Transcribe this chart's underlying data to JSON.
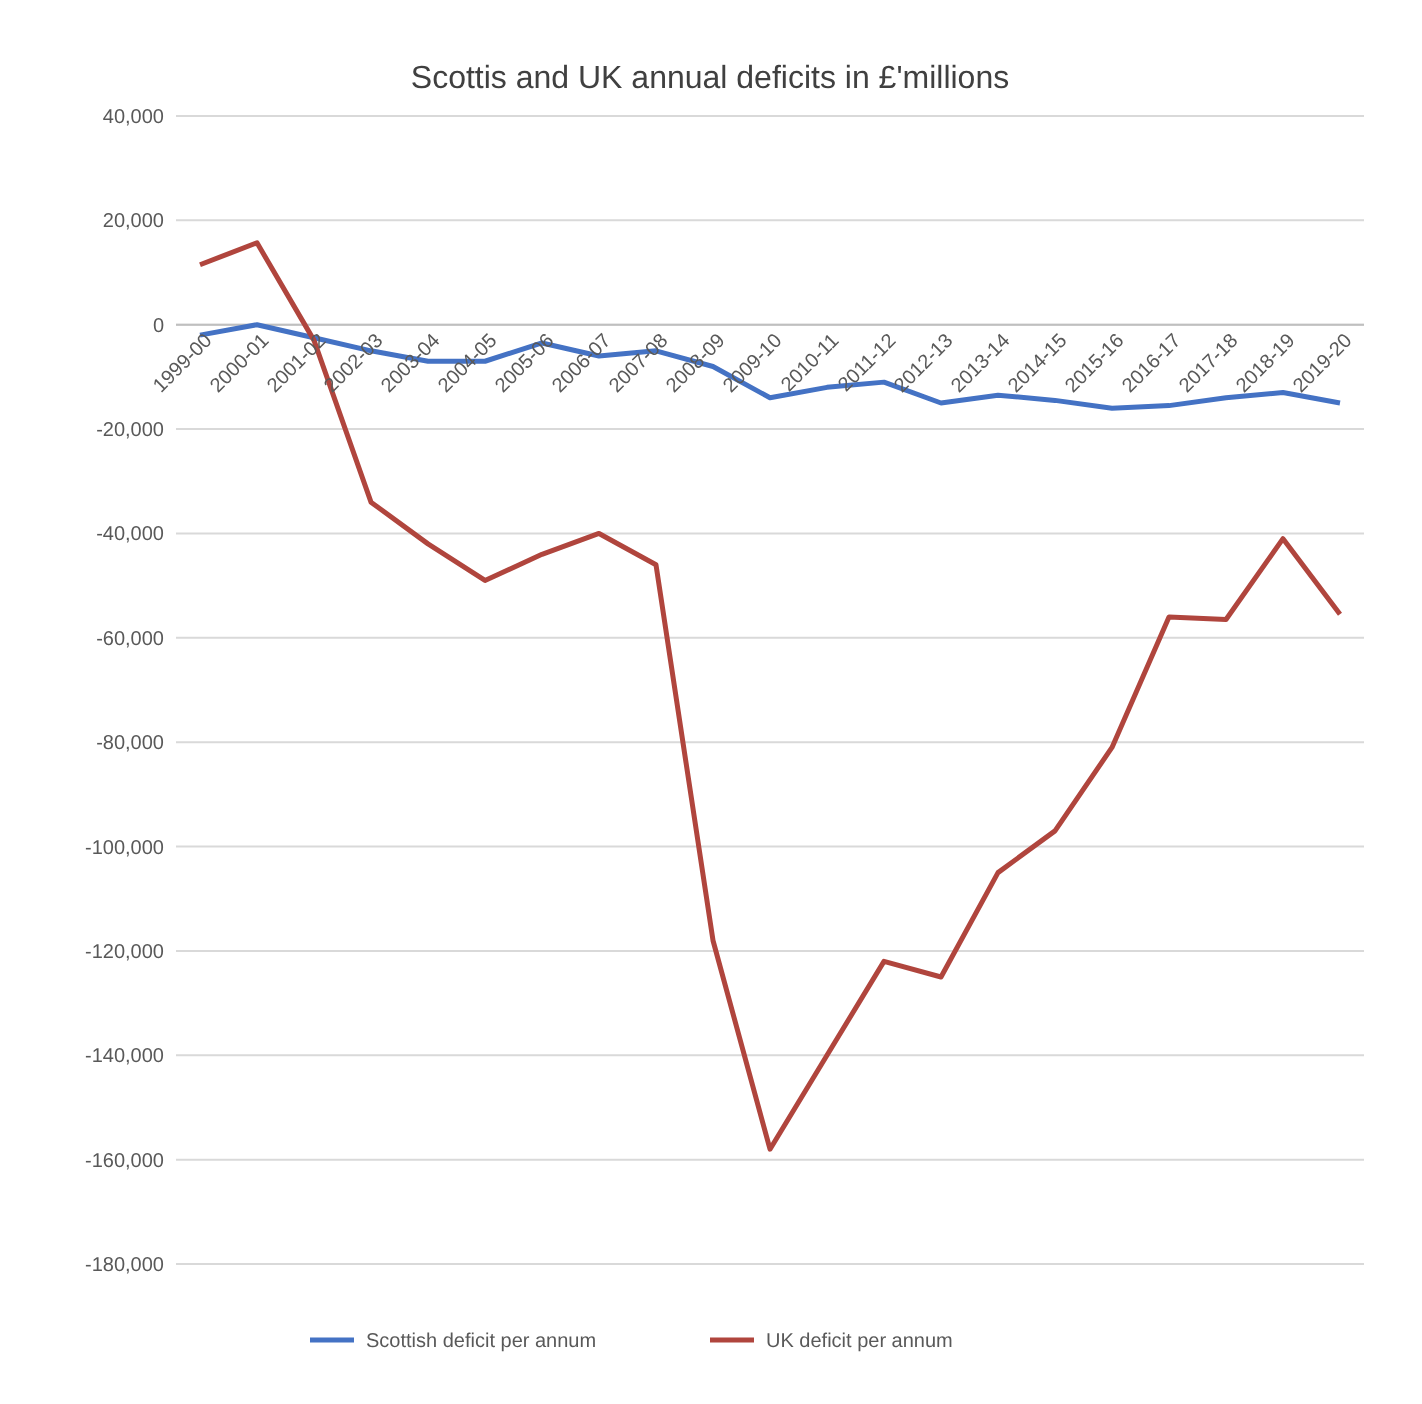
{
  "chart_data": {
    "type": "line",
    "title": "Scottis and UK annual deficits in £'millions",
    "categories": [
      "1999-00",
      "2000-01",
      "2001-02",
      "2002-03",
      "2003-04",
      "2004-05",
      "2005-06",
      "2006-07",
      "2007-08",
      "2008-09",
      "2009-10",
      "2010-11",
      "2011-12",
      "2012-13",
      "2013-14",
      "2014-15",
      "2015-16",
      "2016-17",
      "2017-18",
      "2018-19",
      "2019-20"
    ],
    "series": [
      {
        "name": "Scottish deficit per annum",
        "color": "#4472c4",
        "values": [
          -2000,
          0,
          -2500,
          -5000,
          -7000,
          -7000,
          -3500,
          -6000,
          -5000,
          -8000,
          -14000,
          -12000,
          -11000,
          -15000,
          -13500,
          -14500,
          -16000,
          -15500,
          -14000,
          -13000,
          -15000
        ]
      },
      {
        "name": "UK deficit per annum",
        "color": "#b0453d",
        "values": [
          11500,
          15700,
          -3000,
          -34000,
          -42000,
          -49000,
          -44000,
          -40000,
          -46000,
          -118000,
          -158000,
          -140000,
          -122000,
          -125000,
          -105000,
          -97000,
          -81000,
          -56000,
          -56500,
          -41000,
          -55500
        ]
      }
    ],
    "ylim": [
      -180000,
      40000
    ],
    "yticks": [
      {
        "value": 40000,
        "label": "40,000"
      },
      {
        "value": 20000,
        "label": "20,000"
      },
      {
        "value": 0,
        "label": "0"
      },
      {
        "value": -20000,
        "label": "-20,000"
      },
      {
        "value": -40000,
        "label": "-40,000"
      },
      {
        "value": -60000,
        "label": "-60,000"
      },
      {
        "value": -80000,
        "label": "-80,000"
      },
      {
        "value": -100000,
        "label": "-100,000"
      },
      {
        "value": -120000,
        "label": "-120,000"
      },
      {
        "value": -140000,
        "label": "-140,000"
      },
      {
        "value": -160000,
        "label": "-160,000"
      },
      {
        "value": -180000,
        "label": "-180,000"
      }
    ],
    "grid": "y",
    "legend": "bottom",
    "marker": "none",
    "line_style": "solid"
  }
}
